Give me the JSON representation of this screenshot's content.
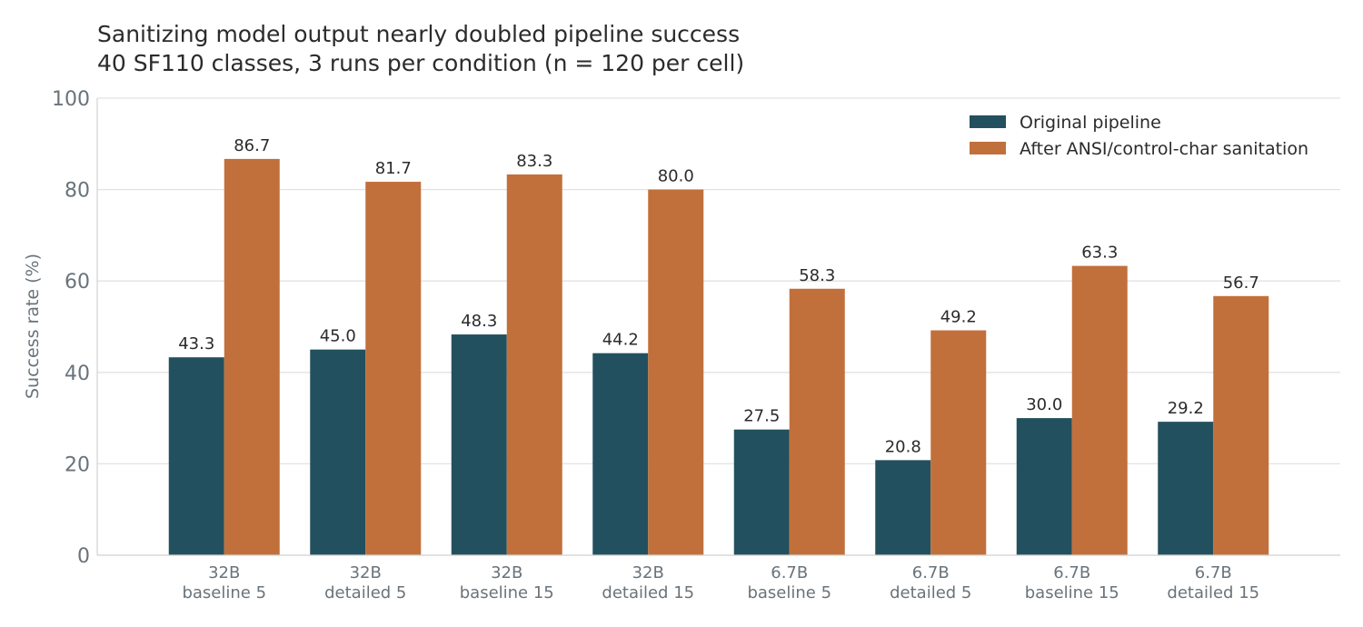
{
  "chart_data": {
    "type": "bar",
    "title": "Sanitizing model output nearly doubled pipeline success",
    "subtitle": "40 SF110 classes, 3 runs per condition (n = 120 per cell)",
    "xlabel": "",
    "ylabel": "Success rate (%)",
    "ylim": [
      0,
      100
    ],
    "yticks": [
      0,
      20,
      40,
      60,
      80,
      100
    ],
    "grid": true,
    "legend_position": "top-right",
    "categories": [
      [
        "32B",
        "baseline 5"
      ],
      [
        "32B",
        "detailed 5"
      ],
      [
        "32B",
        "baseline 15"
      ],
      [
        "32B",
        "detailed 15"
      ],
      [
        "6.7B",
        "baseline 5"
      ],
      [
        "6.7B",
        "detailed 5"
      ],
      [
        "6.7B",
        "baseline 15"
      ],
      [
        "6.7B",
        "detailed 15"
      ]
    ],
    "series": [
      {
        "name": "Original pipeline",
        "color": "#23505E",
        "values": [
          43.3,
          45.0,
          48.3,
          44.2,
          27.5,
          20.8,
          30.0,
          29.2
        ]
      },
      {
        "name": "After ANSI/control-char sanitation",
        "color": "#C1703B",
        "values": [
          86.7,
          81.7,
          83.3,
          80.0,
          58.3,
          49.2,
          63.3,
          56.7
        ]
      }
    ]
  },
  "colors": {
    "text": "#2B2B2B",
    "axis_text": "#6A737A",
    "grid": "#E2E2E2"
  }
}
